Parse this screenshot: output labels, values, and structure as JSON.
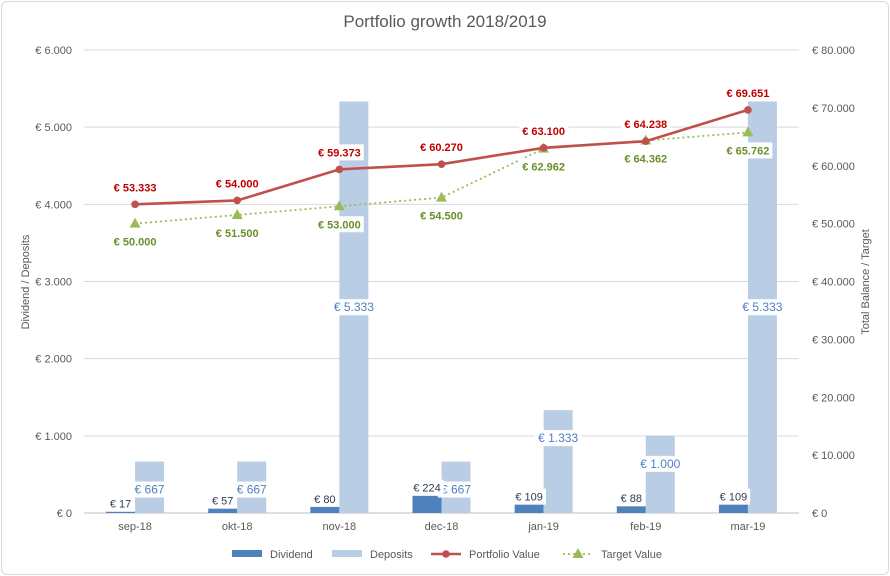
{
  "chart_data": {
    "type": "bar",
    "title": "Portfolio growth 2018/2019",
    "ylabel_left": "Dividend / Deposits",
    "ylabel_right": "Total Balance / Target",
    "categories": [
      "sep-18",
      "okt-18",
      "nov-18",
      "dec-18",
      "jan-19",
      "feb-19",
      "mar-19"
    ],
    "ylim_left": [
      0,
      6000
    ],
    "ylim_right": [
      0,
      80000
    ],
    "left_ticks": [
      "€ 0",
      "€ 1.000",
      "€ 2.000",
      "€ 3.000",
      "€ 4.000",
      "€ 5.000",
      "€ 6.000"
    ],
    "right_ticks": [
      "€ 0",
      "€ 10.000",
      "€ 20.000",
      "€ 30.000",
      "€ 40.000",
      "€ 50.000",
      "€ 60.000",
      "€ 70.000",
      "€ 80.000"
    ],
    "grid": true,
    "legend_position": "bottom",
    "series": [
      {
        "name": "Dividend",
        "type": "bar",
        "axis": "left",
        "color": "#4f81bd",
        "values": [
          17,
          57,
          80,
          224,
          109,
          88,
          109
        ],
        "labels": [
          "€ 17",
          "€ 57",
          "€ 80",
          "€ 224",
          "€ 109",
          "€ 88",
          "€ 109"
        ]
      },
      {
        "name": "Deposits",
        "type": "bar",
        "axis": "left",
        "color": "#b9cde5",
        "values": [
          667,
          667,
          5333,
          667,
          1333,
          1000,
          5333
        ],
        "labels": [
          "€ 667",
          "€ 667",
          "€ 5.333",
          "€ 667",
          "€ 1.333",
          "€ 1.000",
          "€ 5.333"
        ]
      },
      {
        "name": "Portfolio Value",
        "type": "line",
        "axis": "right",
        "color": "#c0504d",
        "values": [
          53333,
          54000,
          59373,
          60270,
          63100,
          64238,
          69651
        ],
        "labels": [
          "€ 53.333",
          "€ 54.000",
          "€ 59.373",
          "€ 60.270",
          "€ 63.100",
          "€ 64.238",
          "€ 69.651"
        ]
      },
      {
        "name": "Target Value",
        "type": "line",
        "axis": "right",
        "color": "#9bbb59",
        "values": [
          50000,
          51500,
          53000,
          54500,
          62962,
          64362,
          65762
        ],
        "labels": [
          "€ 50.000",
          "€ 51.500",
          "€ 53.000",
          "€ 54.500",
          "€ 62.962",
          "€ 64.362",
          "€ 65.762"
        ]
      }
    ]
  }
}
